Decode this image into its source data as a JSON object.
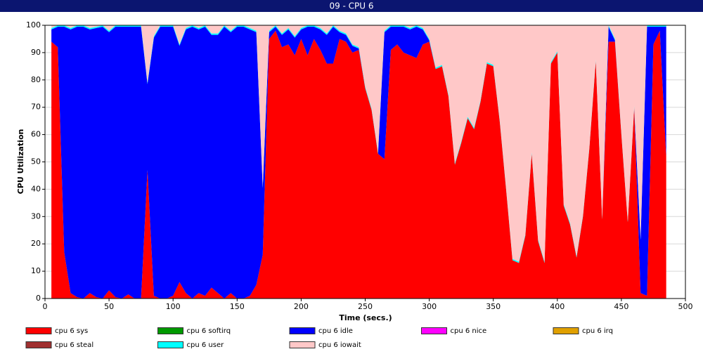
{
  "chart_data": {
    "type": "stacked-area",
    "title": "09 - CPU 6",
    "xlabel": "Time (secs.)",
    "ylabel": "CPU Utilization",
    "xlim": [
      0,
      500
    ],
    "xticks": [
      0,
      50,
      100,
      150,
      200,
      250,
      300,
      350,
      400,
      450,
      500
    ],
    "ylim": [
      0,
      100
    ],
    "yticks": [
      0,
      10,
      20,
      30,
      40,
      50,
      60,
      70,
      80,
      90,
      100
    ],
    "grid": true,
    "x": [
      5,
      10,
      15,
      20,
      25,
      30,
      35,
      40,
      45,
      50,
      55,
      60,
      65,
      70,
      75,
      80,
      85,
      90,
      95,
      100,
      105,
      110,
      115,
      120,
      125,
      130,
      135,
      140,
      145,
      150,
      155,
      160,
      165,
      170,
      175,
      180,
      185,
      190,
      195,
      200,
      205,
      210,
      215,
      220,
      225,
      230,
      235,
      240,
      245,
      250,
      255,
      260,
      265,
      270,
      275,
      280,
      285,
      290,
      295,
      300,
      305,
      310,
      315,
      320,
      325,
      330,
      335,
      340,
      345,
      350,
      355,
      360,
      365,
      370,
      375,
      380,
      385,
      390,
      395,
      400,
      405,
      410,
      415,
      420,
      425,
      430,
      435,
      440,
      445,
      450,
      455,
      460,
      465,
      470,
      475,
      480,
      485
    ],
    "series": [
      {
        "name": "cpu 6 sys",
        "color": "#ff0000",
        "values": [
          94,
          92,
          17,
          2,
          0.5,
          0,
          2,
          0.5,
          0,
          3,
          0.5,
          0,
          1.5,
          0,
          0,
          47,
          1,
          0,
          0,
          1,
          6,
          2,
          0,
          2,
          1,
          4,
          2,
          0,
          2,
          0,
          0,
          1,
          5,
          16,
          95,
          98,
          92,
          93,
          89,
          95,
          89,
          95,
          91,
          86,
          86,
          95,
          94,
          90,
          91,
          77,
          69,
          53,
          51,
          91,
          93,
          90,
          89,
          88,
          93,
          94,
          84,
          85,
          74,
          49,
          57,
          66,
          62,
          72,
          86,
          85,
          65,
          40,
          14,
          13,
          23,
          53,
          21,
          13,
          86,
          90,
          34,
          27,
          15,
          30,
          55,
          87,
          29,
          94,
          94,
          60,
          28,
          70,
          2,
          1,
          93,
          98,
          52
        ]
      },
      {
        "name": "cpu 6 softirq",
        "color": "#009900",
        "values": [
          0,
          0,
          0,
          0,
          0,
          0,
          0,
          0,
          0,
          0,
          0,
          0,
          0,
          0,
          0,
          0,
          0,
          0,
          0,
          0,
          0,
          0,
          0,
          0,
          0,
          0,
          0,
          0,
          0,
          0,
          0,
          0,
          0,
          0,
          0,
          0,
          0,
          0,
          0,
          0,
          0,
          0,
          0,
          0,
          0,
          0,
          0,
          0,
          0,
          0,
          0,
          0,
          0,
          0,
          0,
          0,
          0,
          0,
          0,
          0,
          0,
          0,
          0,
          0,
          0,
          0,
          0,
          0,
          0,
          0,
          0,
          0,
          0,
          0,
          0,
          0,
          0,
          0,
          0,
          0,
          0,
          0,
          0,
          0,
          0,
          0,
          0,
          0,
          0,
          0,
          0,
          0,
          0,
          0,
          0,
          0,
          0
        ]
      },
      {
        "name": "cpu 6 idle",
        "color": "#0000ff",
        "values": [
          4.5,
          7.5,
          82.5,
          96.5,
          99,
          99.5,
          96.5,
          98.5,
          99.5,
          94.5,
          99,
          99.5,
          98,
          99.5,
          99.5,
          31.5,
          94.5,
          99.5,
          99.5,
          98.5,
          86.5,
          96.5,
          99.5,
          96.5,
          98.5,
          92.5,
          94.5,
          99.5,
          95.5,
          99.5,
          99.5,
          97.5,
          92.5,
          24.5,
          2.5,
          1.5,
          4.5,
          5.5,
          6.5,
          3.5,
          10.5,
          4.5,
          7.5,
          10.5,
          13.5,
          2.5,
          2.5,
          2.5,
          0.5,
          0,
          0,
          0,
          46.5,
          8.5,
          6.5,
          9.5,
          9.5,
          11.5,
          5.5,
          0.5,
          0,
          0,
          0,
          0,
          0,
          0,
          0,
          0,
          0,
          0,
          0,
          0,
          0,
          0,
          0,
          0,
          0,
          0,
          0,
          0,
          0,
          0,
          0,
          0,
          0,
          0,
          0,
          5.5,
          0.5,
          0,
          0,
          0,
          19.5,
          98.5,
          6.5,
          1.5,
          47.5
        ]
      },
      {
        "name": "cpu 6 nice",
        "color": "#ff00ff",
        "values": [
          0,
          0,
          0,
          0,
          0,
          0,
          0,
          0,
          0,
          0,
          0,
          0,
          0,
          0,
          0,
          0,
          0,
          0,
          0,
          0,
          0,
          0,
          0,
          0,
          0,
          0,
          0,
          0,
          0,
          0,
          0,
          0,
          0,
          0,
          0,
          0,
          0,
          0,
          0,
          0,
          0,
          0,
          0,
          0,
          0,
          0,
          0,
          0,
          0,
          0,
          0,
          0,
          0,
          0,
          0,
          0,
          0,
          0,
          0,
          0,
          0,
          0,
          0,
          0,
          0,
          0,
          0,
          0,
          0,
          0,
          0,
          0,
          0,
          0,
          0,
          0,
          0,
          0,
          0,
          0,
          0,
          0,
          0,
          0,
          0,
          0,
          0,
          0,
          0,
          0,
          0,
          0,
          0,
          0,
          0,
          0,
          0
        ]
      },
      {
        "name": "cpu 6 irq",
        "color": "#e0a000",
        "values": [
          0,
          0,
          0,
          0,
          0,
          0,
          0,
          0,
          0,
          0,
          0,
          0,
          0,
          0,
          0,
          0,
          0,
          0,
          0,
          0,
          0,
          0,
          0,
          0,
          0,
          0,
          0,
          0,
          0,
          0,
          0,
          0,
          0,
          0,
          0,
          0,
          0,
          0,
          0,
          0,
          0,
          0,
          0,
          0,
          0,
          0,
          0,
          0,
          0,
          0,
          0,
          0,
          0,
          0,
          0,
          0,
          0,
          0,
          0,
          0,
          0,
          0,
          0,
          0,
          0,
          0,
          0,
          0,
          0,
          0,
          0,
          0,
          0,
          0,
          0,
          0,
          0,
          0,
          0,
          0,
          0,
          0,
          0,
          0,
          0,
          0,
          0,
          0,
          0,
          0,
          0,
          0,
          0,
          0,
          0,
          0,
          0
        ]
      },
      {
        "name": "cpu 6 steal",
        "color": "#a03030",
        "values": [
          0,
          0,
          0,
          0,
          0,
          0,
          0,
          0,
          0,
          0,
          0,
          0,
          0,
          0,
          0,
          0,
          0,
          0,
          0,
          0,
          0,
          0,
          0,
          0,
          0,
          0,
          0,
          0,
          0,
          0,
          0,
          0,
          0,
          0,
          0,
          0,
          0,
          0,
          0,
          0,
          0,
          0,
          0,
          0,
          0,
          0,
          0,
          0,
          0,
          0,
          0,
          0,
          0,
          0,
          0,
          0,
          0,
          0,
          0,
          0,
          0,
          0,
          0,
          0,
          0,
          0,
          0,
          0,
          0,
          0,
          0,
          0,
          0,
          0,
          0,
          0,
          0,
          0,
          0,
          0,
          0,
          0,
          0,
          0,
          0,
          0,
          0,
          0,
          0,
          0,
          0,
          0,
          0,
          0,
          0,
          0,
          0
        ]
      },
      {
        "name": "cpu 6 user",
        "color": "#00ffff",
        "values": [
          0.5,
          0.5,
          0.5,
          0.5,
          0.5,
          0.5,
          0.5,
          0.5,
          0.5,
          0.5,
          0.5,
          0.5,
          0.5,
          0.5,
          0.5,
          0.5,
          0.5,
          0.5,
          0.5,
          0.5,
          0.5,
          0.5,
          0.5,
          0.5,
          0.5,
          0.5,
          0.5,
          0.5,
          0.5,
          0.5,
          0.5,
          0.5,
          0.5,
          0.5,
          0.5,
          0.5,
          0.5,
          0.5,
          0.5,
          0.5,
          0.5,
          0.5,
          0.5,
          0.5,
          0.5,
          0.5,
          0.5,
          0.5,
          0.5,
          0.5,
          0.5,
          0.5,
          0.5,
          0.5,
          0.5,
          0.5,
          0.5,
          0.5,
          0.5,
          0.5,
          0.5,
          0.5,
          0.5,
          0.5,
          0.5,
          0.5,
          0.5,
          0.5,
          0.5,
          0.5,
          0.5,
          0.5,
          0.5,
          0.5,
          0.5,
          0.5,
          0.5,
          0.5,
          0.5,
          0.5,
          0.5,
          0.5,
          0.5,
          0.5,
          0.5,
          0.5,
          0.5,
          0.5,
          0.5,
          0.5,
          0.5,
          0.5,
          0.5,
          0.5,
          0.5,
          0.5,
          0.5
        ]
      },
      {
        "name": "cpu 6 iowait",
        "color": "#ffc8c8",
        "values": [
          1,
          0,
          0,
          1,
          0,
          0,
          1,
          0.5,
          0,
          2,
          0,
          0,
          0,
          0,
          0,
          21,
          4,
          0,
          0,
          0,
          7,
          1,
          0,
          1,
          0,
          3,
          3,
          0,
          2,
          0,
          0,
          1,
          2,
          59,
          2,
          0,
          3,
          1,
          4,
          1,
          0,
          0,
          1,
          3,
          0,
          2,
          3,
          7,
          8,
          22.5,
          30.5,
          46.5,
          2,
          0,
          0,
          0,
          1,
          0,
          1,
          5,
          15.5,
          14.5,
          25.5,
          50.5,
          42.5,
          33.5,
          37.5,
          27.5,
          13.5,
          14.5,
          34.5,
          59.5,
          85.5,
          86.5,
          76.5,
          46.5,
          78.5,
          86.5,
          13.5,
          9.5,
          65.5,
          72.5,
          84.5,
          69.5,
          44.5,
          12.5,
          70.5,
          0,
          5,
          39.5,
          71.5,
          29.5,
          78,
          0,
          0,
          0,
          0
        ]
      }
    ]
  }
}
